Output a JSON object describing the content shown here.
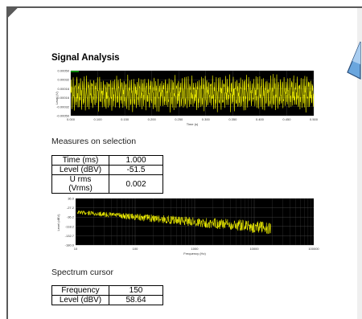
{
  "page": {
    "title": "Signal Analysis"
  },
  "time_chart": {
    "type": "line",
    "ylabel": "Level (V)",
    "xlabel": "Time (s)",
    "y_ticks": [
      "0.00050",
      "0.00032",
      "0.00016",
      "-0.00016",
      "-0.00032",
      "-0.00050"
    ],
    "x_ticks": [
      "0.000",
      "0.100",
      "0.150",
      "0.200",
      "0.250",
      "0.300",
      "0.350",
      "0.400",
      "0.450",
      "0.500"
    ],
    "trace_color": "#ffff00",
    "background": "#000000",
    "legend_color": "#00ff00"
  },
  "measures": {
    "heading": "Measures on selection",
    "rows": [
      {
        "label": "Time (ms)",
        "value": "1.000"
      },
      {
        "label": "Level (dBV)",
        "value": "-51.5"
      },
      {
        "label": "U rms (Vrms)",
        "value": "0.002"
      }
    ]
  },
  "spectrum_chart": {
    "type": "line",
    "ylabel": "Level (dBV)",
    "xlabel": "Frequency (Hz)",
    "y_ticks": [
      "36.0",
      "-27.2",
      "-36.2",
      "-118.2",
      "-132.7",
      "-180.0"
    ],
    "x_ticks": [
      "10",
      "100",
      "1000",
      "10000",
      "100000"
    ],
    "trace_color": "#ffff00",
    "background": "#000000"
  },
  "spectrum_cursor": {
    "heading": "Spectrum cursor",
    "rows": [
      {
        "label": "Frequency",
        "value": "150"
      },
      {
        "label": "Level (dBV)",
        "value": "58.64"
      }
    ]
  },
  "chart_data": [
    {
      "type": "line",
      "title": "",
      "xlabel": "Time (s)",
      "ylabel": "Level (V)",
      "xlim": [
        0,
        0.5
      ],
      "ylim": [
        -0.0005,
        0.0005
      ],
      "grid": true,
      "series": [
        {
          "values_description_free": true,
          "points": "dense oscillating trace",
          "color": "#ffff00"
        }
      ]
    },
    {
      "type": "line",
      "title": "",
      "xlabel": "Frequency (Hz)",
      "ylabel": "Level (dBV)",
      "xscale": "log",
      "xlim": [
        10,
        100000
      ],
      "grid": true,
      "series": [
        {
          "color": "#ffff00"
        }
      ]
    }
  ]
}
